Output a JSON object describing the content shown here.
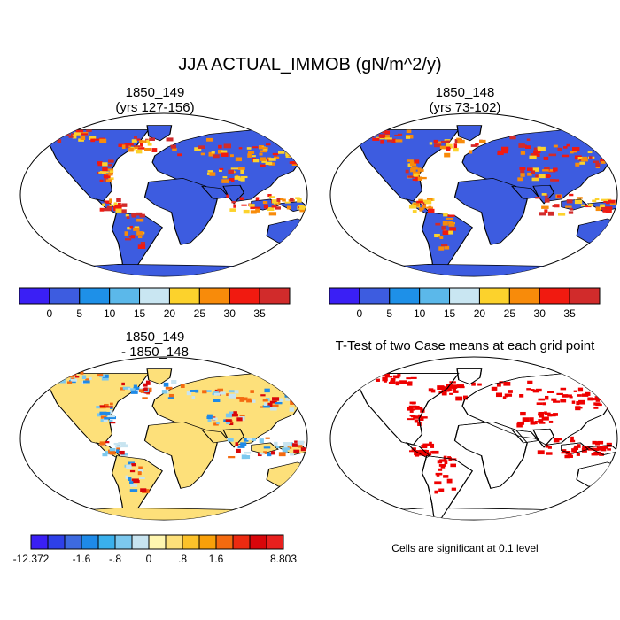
{
  "title": "JJA ACTUAL_IMMOB (gN/m^2/y)",
  "panels": [
    {
      "id": "p1",
      "title_line1": "1850_149",
      "title_line2": "(yrs 127-156)"
    },
    {
      "id": "p2",
      "title_line1": "1850_148",
      "title_line2": "(yrs 73-102)"
    },
    {
      "id": "p3",
      "title_line1": "1850_149",
      "title_line2": "- 1850_148"
    },
    {
      "id": "p4",
      "title_line1": "T-Test of two Case means at each grid point",
      "title_line2": ""
    }
  ],
  "note": "Cells are significant at 0.1 level",
  "chart_data": [
    {
      "type": "heatmap",
      "title": "1850_149 (yrs 127-156)",
      "colorbar": {
        "colors": [
          "#3a1ff5",
          "#3d5ce0",
          "#1e90e8",
          "#5bb8ea",
          "#c9e6f2",
          "#fcd22c",
          "#f88b0a",
          "#f11a10",
          "#d12b2b"
        ],
        "labels": [
          "0",
          "5",
          "10",
          "15",
          "20",
          "25",
          "30",
          "35"
        ]
      }
    },
    {
      "type": "heatmap",
      "title": "1850_148 (yrs 73-102)",
      "colorbar": {
        "colors": [
          "#3a1ff5",
          "#3d5ce0",
          "#1e90e8",
          "#5bb8ea",
          "#c9e6f2",
          "#fcd22c",
          "#f88b0a",
          "#f11a10",
          "#d12b2b"
        ],
        "labels": [
          "0",
          "5",
          "10",
          "15",
          "20",
          "25",
          "30",
          "35"
        ]
      }
    },
    {
      "type": "heatmap",
      "title": "1850_149 - 1850_148",
      "colorbar": {
        "colors": [
          "#3a1ff5",
          "#2e40e8",
          "#3d6ae0",
          "#1e8ae8",
          "#3ab0ec",
          "#7cc8ee",
          "#c8e4f0",
          "#fff6b0",
          "#fde07a",
          "#fcc22a",
          "#f8a00a",
          "#f46a10",
          "#ec2a10",
          "#d8060a",
          "#e8201e"
        ],
        "labels": [
          "-12.372",
          "-1.6",
          "-.8",
          "0",
          ".8",
          "1.6",
          "8.803"
        ]
      }
    },
    {
      "type": "heatmap",
      "title": "T-Test of two Case means at each grid point",
      "significance_color": "#ee0000"
    }
  ]
}
